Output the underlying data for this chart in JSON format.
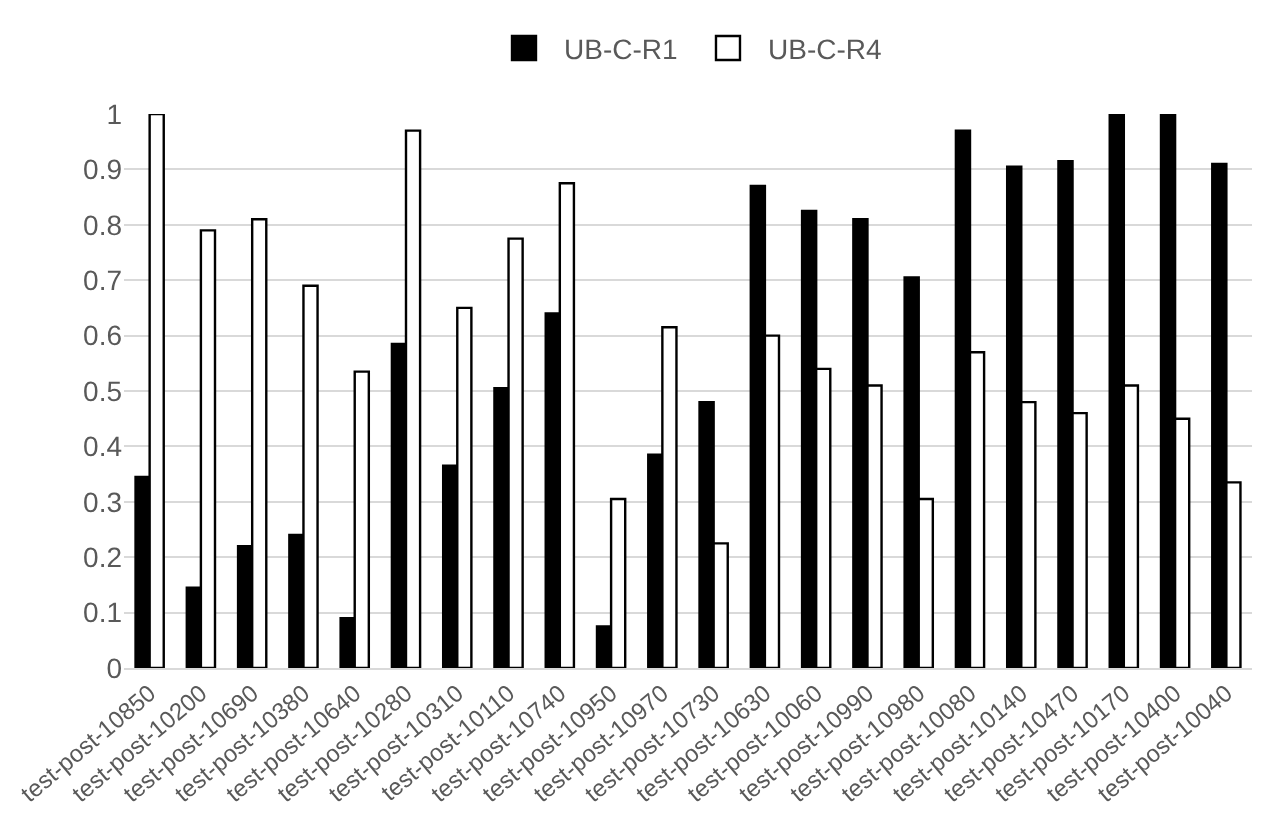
{
  "chart_data": {
    "type": "bar",
    "categories": [
      "test-post-10850",
      "test-post-10200",
      "test-post-10690",
      "test-post-10380",
      "test-post-10640",
      "test-post-10280",
      "test-post-10310",
      "test-post-10110",
      "test-post-10740",
      "test-post-10950",
      "test-post-10970",
      "test-post-10730",
      "test-post-10630",
      "test-post-10060",
      "test-post-10990",
      "test-post-10980",
      "test-post-10080",
      "test-post-10140",
      "test-post-10470",
      "test-post-10170",
      "test-post-10400",
      "test-post-10040"
    ],
    "series": [
      {
        "name": "UB-C-R1",
        "color": "#000000",
        "values": [
          0.345,
          0.145,
          0.22,
          0.24,
          0.09,
          0.585,
          0.365,
          0.505,
          0.64,
          0.075,
          0.385,
          0.48,
          0.87,
          0.825,
          0.81,
          0.705,
          0.97,
          0.905,
          0.915,
          1.0,
          1.0,
          0.91
        ]
      },
      {
        "name": "UB-C-R4",
        "color": "#ffffff",
        "values": [
          1.0,
          0.79,
          0.81,
          0.69,
          0.535,
          0.97,
          0.65,
          0.775,
          0.875,
          0.305,
          0.615,
          0.225,
          0.6,
          0.54,
          0.51,
          0.305,
          0.57,
          0.48,
          0.46,
          0.51,
          0.45,
          0.335
        ]
      }
    ],
    "ylim": [
      0,
      1
    ],
    "yticks": [
      0,
      0.1,
      0.2,
      0.3,
      0.4,
      0.5,
      0.6,
      0.7,
      0.8,
      0.9,
      1
    ],
    "grid": "y",
    "legend": "top"
  }
}
